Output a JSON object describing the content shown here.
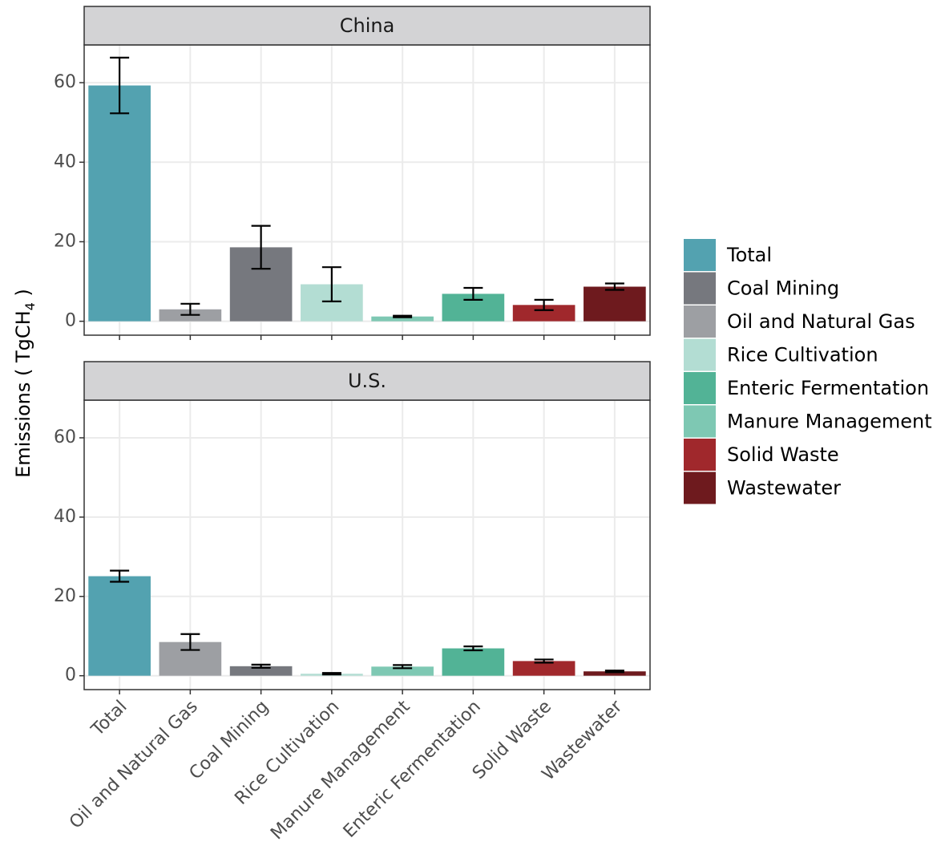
{
  "chart_data": {
    "type": "bar",
    "y_label": {
      "text": "Emissions ( TgCH",
      "subscript": "4",
      "suffix": " )"
    },
    "categories": [
      "Total",
      "Oil and Natural Gas",
      "Coal Mining",
      "Rice Cultivation",
      "Manure Management",
      "Enteric Fermentation",
      "Solid Waste",
      "Wastewater"
    ],
    "colors": [
      "#53a2b0",
      "#9d9fa3",
      "#76787e",
      "#b3ddd3",
      "#7ec8b3",
      "#52b396",
      "#a0282c",
      "#6e1a1e"
    ],
    "ylim": [
      -3.5,
      69.5
    ],
    "yticks": [
      0,
      20,
      40,
      60
    ],
    "grid": true,
    "facets": [
      {
        "title": "China",
        "values": [
          59.3,
          3.0,
          18.6,
          9.3,
          1.2,
          6.9,
          4.1,
          8.7
        ],
        "errors": [
          7.0,
          1.4,
          5.4,
          4.3,
          0.2,
          1.5,
          1.3,
          0.8
        ]
      },
      {
        "title": "U.S.",
        "values": [
          25.1,
          8.5,
          2.4,
          0.5,
          2.3,
          6.9,
          3.7,
          1.1
        ],
        "errors": [
          1.4,
          2.0,
          0.4,
          0.2,
          0.4,
          0.5,
          0.4,
          0.2
        ]
      }
    ],
    "legend": [
      {
        "name": "Total",
        "color": "#53a2b0"
      },
      {
        "name": "Coal Mining",
        "color": "#76787e"
      },
      {
        "name": "Oil and Natural Gas",
        "color": "#9d9fa3"
      },
      {
        "name": "Rice Cultivation",
        "color": "#b3ddd3"
      },
      {
        "name": "Enteric Fermentation",
        "color": "#52b396"
      },
      {
        "name": "Manure Management",
        "color": "#7ec8b3"
      },
      {
        "name": "Solid Waste",
        "color": "#a0282c"
      },
      {
        "name": "Wastewater",
        "color": "#6e1a1e"
      }
    ]
  }
}
